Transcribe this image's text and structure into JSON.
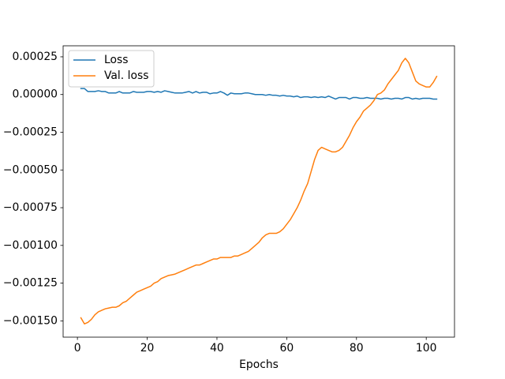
{
  "chart_data": {
    "type": "line",
    "xlabel": "Epochs",
    "x": [
      1,
      2,
      3,
      4,
      5,
      6,
      7,
      8,
      9,
      10,
      11,
      12,
      13,
      14,
      15,
      16,
      17,
      18,
      19,
      20,
      21,
      22,
      23,
      24,
      25,
      26,
      27,
      28,
      29,
      30,
      31,
      32,
      33,
      34,
      35,
      36,
      37,
      38,
      39,
      40,
      41,
      42,
      43,
      44,
      45,
      46,
      47,
      48,
      49,
      50,
      51,
      52,
      53,
      54,
      55,
      56,
      57,
      58,
      59,
      60,
      61,
      62,
      63,
      64,
      65,
      66,
      67,
      68,
      69,
      70,
      71,
      72,
      73,
      74,
      75,
      76,
      77,
      78,
      79,
      80,
      81,
      82,
      83,
      84,
      85,
      86,
      87,
      88,
      89,
      90,
      91,
      92,
      93,
      94,
      95,
      96,
      97,
      98,
      99,
      100,
      101,
      102,
      103
    ],
    "series": [
      {
        "name": "Loss",
        "color": "#1f77b4",
        "values": [
          4e-05,
          4e-05,
          2e-05,
          2e-05,
          2e-05,
          2.5e-05,
          2e-05,
          2e-05,
          1e-05,
          1e-05,
          1e-05,
          2e-05,
          1e-05,
          1e-05,
          1e-05,
          2e-05,
          1.5e-05,
          1.5e-05,
          1.5e-05,
          2e-05,
          2e-05,
          1.5e-05,
          2e-05,
          1.5e-05,
          2.5e-05,
          2e-05,
          1.5e-05,
          1e-05,
          1e-05,
          1e-05,
          1.5e-05,
          2e-05,
          1e-05,
          2e-05,
          1e-05,
          1.5e-05,
          1.5e-05,
          5e-06,
          1e-05,
          1e-05,
          2e-05,
          1e-05,
          -5e-06,
          1e-05,
          5e-06,
          5e-06,
          5e-06,
          1e-05,
          1e-05,
          5e-06,
          0,
          0,
          0,
          -5e-06,
          0,
          -5e-06,
          -5e-06,
          -1e-05,
          -5e-06,
          -1e-05,
          -1e-05,
          -1.5e-05,
          -1e-05,
          -2e-05,
          -1.5e-05,
          -1.5e-05,
          -2e-05,
          -1.5e-05,
          -2e-05,
          -1.5e-05,
          -2e-05,
          -1e-05,
          -2e-05,
          -3e-05,
          -2e-05,
          -2e-05,
          -2e-05,
          -3e-05,
          -2e-05,
          -2e-05,
          -2.5e-05,
          -2.5e-05,
          -2e-05,
          -2.5e-05,
          -2.5e-05,
          -2.5e-05,
          -3e-05,
          -2.5e-05,
          -2.5e-05,
          -3e-05,
          -2.5e-05,
          -2.5e-05,
          -3e-05,
          -2e-05,
          -2e-05,
          -3e-05,
          -2.5e-05,
          -3e-05,
          -2.5e-05,
          -2.5e-05,
          -2.5e-05,
          -3e-05,
          -3e-05
        ]
      },
      {
        "name": "Val. loss",
        "color": "#ff7f0e",
        "values": [
          -0.00148,
          -0.00152,
          -0.00151,
          -0.00149,
          -0.00146,
          -0.00144,
          -0.00143,
          -0.00142,
          -0.001415,
          -0.00141,
          -0.00141,
          -0.0014,
          -0.00138,
          -0.00137,
          -0.00135,
          -0.00133,
          -0.00131,
          -0.0013,
          -0.00129,
          -0.00128,
          -0.00127,
          -0.00125,
          -0.00124,
          -0.00122,
          -0.00121,
          -0.0012,
          -0.001195,
          -0.00119,
          -0.00118,
          -0.00117,
          -0.00116,
          -0.00115,
          -0.00114,
          -0.00113,
          -0.00113,
          -0.00112,
          -0.00111,
          -0.0011,
          -0.00109,
          -0.00109,
          -0.00108,
          -0.00108,
          -0.00108,
          -0.00108,
          -0.00107,
          -0.00107,
          -0.00106,
          -0.00105,
          -0.00104,
          -0.00102,
          -0.001,
          -0.00098,
          -0.00095,
          -0.00093,
          -0.00092,
          -0.00092,
          -0.00092,
          -0.00091,
          -0.00089,
          -0.00086,
          -0.00083,
          -0.00079,
          -0.00075,
          -0.0007,
          -0.00064,
          -0.00059,
          -0.00051,
          -0.00043,
          -0.00037,
          -0.00035,
          -0.00036,
          -0.00037,
          -0.00038,
          -0.00038,
          -0.00037,
          -0.00035,
          -0.00031,
          -0.00027,
          -0.00022,
          -0.00018,
          -0.00015,
          -0.00011,
          -9e-05,
          -7e-05,
          -4e-05,
          0,
          1e-05,
          3e-05,
          7e-05,
          0.0001,
          0.00013,
          0.00016,
          0.00021,
          0.00024,
          0.00021,
          0.00015,
          9e-05,
          7e-05,
          6e-05,
          5e-05,
          5e-05,
          8e-05,
          0.00012
        ]
      }
    ],
    "xlim": [
      -4.1,
      108.1
    ],
    "ylim": [
      -0.001608,
      0.000323
    ],
    "xticks": [
      0,
      20,
      40,
      60,
      80,
      100
    ],
    "yticks": [
      {
        "value": -0.0015,
        "label": "−0.00150"
      },
      {
        "value": -0.00125,
        "label": "−0.00125"
      },
      {
        "value": -0.001,
        "label": "−0.00100"
      },
      {
        "value": -0.00075,
        "label": "−0.00075"
      },
      {
        "value": -0.0005,
        "label": "−0.00050"
      },
      {
        "value": -0.00025,
        "label": "−0.00025"
      },
      {
        "value": 0,
        "label": "0.00000"
      },
      {
        "value": 0.00025,
        "label": "0.00025"
      }
    ],
    "grid": false,
    "legend": "upper left"
  }
}
